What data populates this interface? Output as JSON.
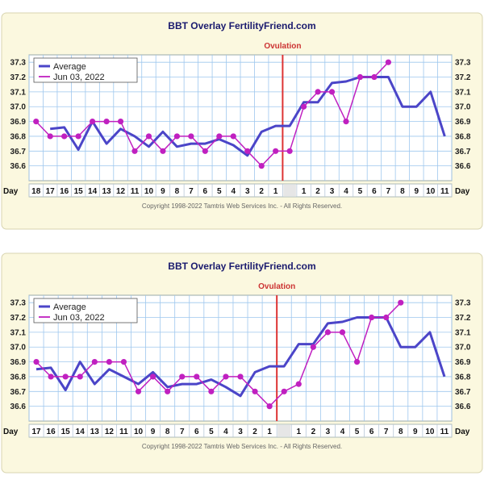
{
  "chart_data": [
    {
      "type": "line",
      "title": "BBT Overlay FertilityFriend.com",
      "annotation": "Ovulation",
      "ylim": [
        36.5,
        37.35
      ],
      "yticks": [
        "37.3",
        "37.2",
        "37.1",
        "37.0",
        "36.9",
        "36.8",
        "36.7",
        "36.6"
      ],
      "xlabel": "Day",
      "categories": [
        "18",
        "17",
        "16",
        "15",
        "14",
        "13",
        "12",
        "11",
        "10",
        "9",
        "8",
        "7",
        "6",
        "5",
        "4",
        "3",
        "2",
        "1",
        "",
        "1",
        "2",
        "3",
        "4",
        "5",
        "6",
        "7",
        "8",
        "9",
        "10",
        "11"
      ],
      "series": [
        {
          "name": "Average",
          "color": "#4b45c8",
          "values": [
            null,
            36.85,
            36.86,
            36.71,
            36.9,
            36.75,
            36.85,
            36.8,
            36.73,
            36.83,
            36.73,
            36.75,
            36.75,
            36.78,
            36.74,
            36.67,
            36.83,
            36.87,
            36.87,
            37.03,
            37.03,
            37.16,
            37.17,
            37.2,
            37.2,
            37.2,
            37.0,
            37.0,
            37.1,
            36.8
          ]
        },
        {
          "name": "Jun 03, 2022",
          "color": "#c020c0",
          "values": [
            36.9,
            36.8,
            36.8,
            36.8,
            36.9,
            36.9,
            36.9,
            36.7,
            36.8,
            36.7,
            36.8,
            36.8,
            36.7,
            36.8,
            36.8,
            36.7,
            36.6,
            36.7,
            36.7,
            37.0,
            37.1,
            37.1,
            36.9,
            37.2,
            37.2,
            37.3,
            null,
            null,
            null,
            null
          ]
        }
      ],
      "ovulation_after_index": 17,
      "footer": "Copyright 1998-2022 Tamtris Web Services Inc. - All Rights Reserved."
    },
    {
      "type": "line",
      "title": "BBT Overlay FertilityFriend.com",
      "annotation": "Ovulation",
      "ylim": [
        36.5,
        37.35
      ],
      "yticks": [
        "37.3",
        "37.2",
        "37.1",
        "37.0",
        "36.9",
        "36.8",
        "36.7",
        "36.6"
      ],
      "xlabel": "Day",
      "categories": [
        "17",
        "16",
        "15",
        "14",
        "13",
        "12",
        "11",
        "10",
        "9",
        "8",
        "7",
        "6",
        "5",
        "4",
        "3",
        "2",
        "1",
        "",
        "1",
        "2",
        "3",
        "4",
        "5",
        "6",
        "7",
        "8",
        "9",
        "10",
        "11"
      ],
      "series": [
        {
          "name": "Average",
          "color": "#4b45c8",
          "values": [
            36.85,
            36.86,
            36.71,
            36.9,
            36.75,
            36.85,
            36.8,
            36.75,
            36.83,
            36.73,
            36.75,
            36.75,
            36.78,
            36.73,
            36.67,
            36.83,
            36.87,
            36.87,
            37.02,
            37.02,
            37.16,
            37.17,
            37.2,
            37.2,
            37.2,
            37.0,
            37.0,
            37.1,
            36.8
          ]
        },
        {
          "name": "Jun 03, 2022",
          "color": "#c020c0",
          "values": [
            36.9,
            36.8,
            36.8,
            36.8,
            36.9,
            36.9,
            36.9,
            36.7,
            36.8,
            36.7,
            36.8,
            36.8,
            36.7,
            36.8,
            36.8,
            36.7,
            36.6,
            36.7,
            36.75,
            37.0,
            37.1,
            37.1,
            36.9,
            37.2,
            37.2,
            37.3,
            null,
            null,
            null
          ]
        }
      ],
      "ovulation_after_index": 16,
      "footer": "Copyright 1998-2022 Tamtris Web Services Inc. - All Rights Reserved."
    }
  ]
}
